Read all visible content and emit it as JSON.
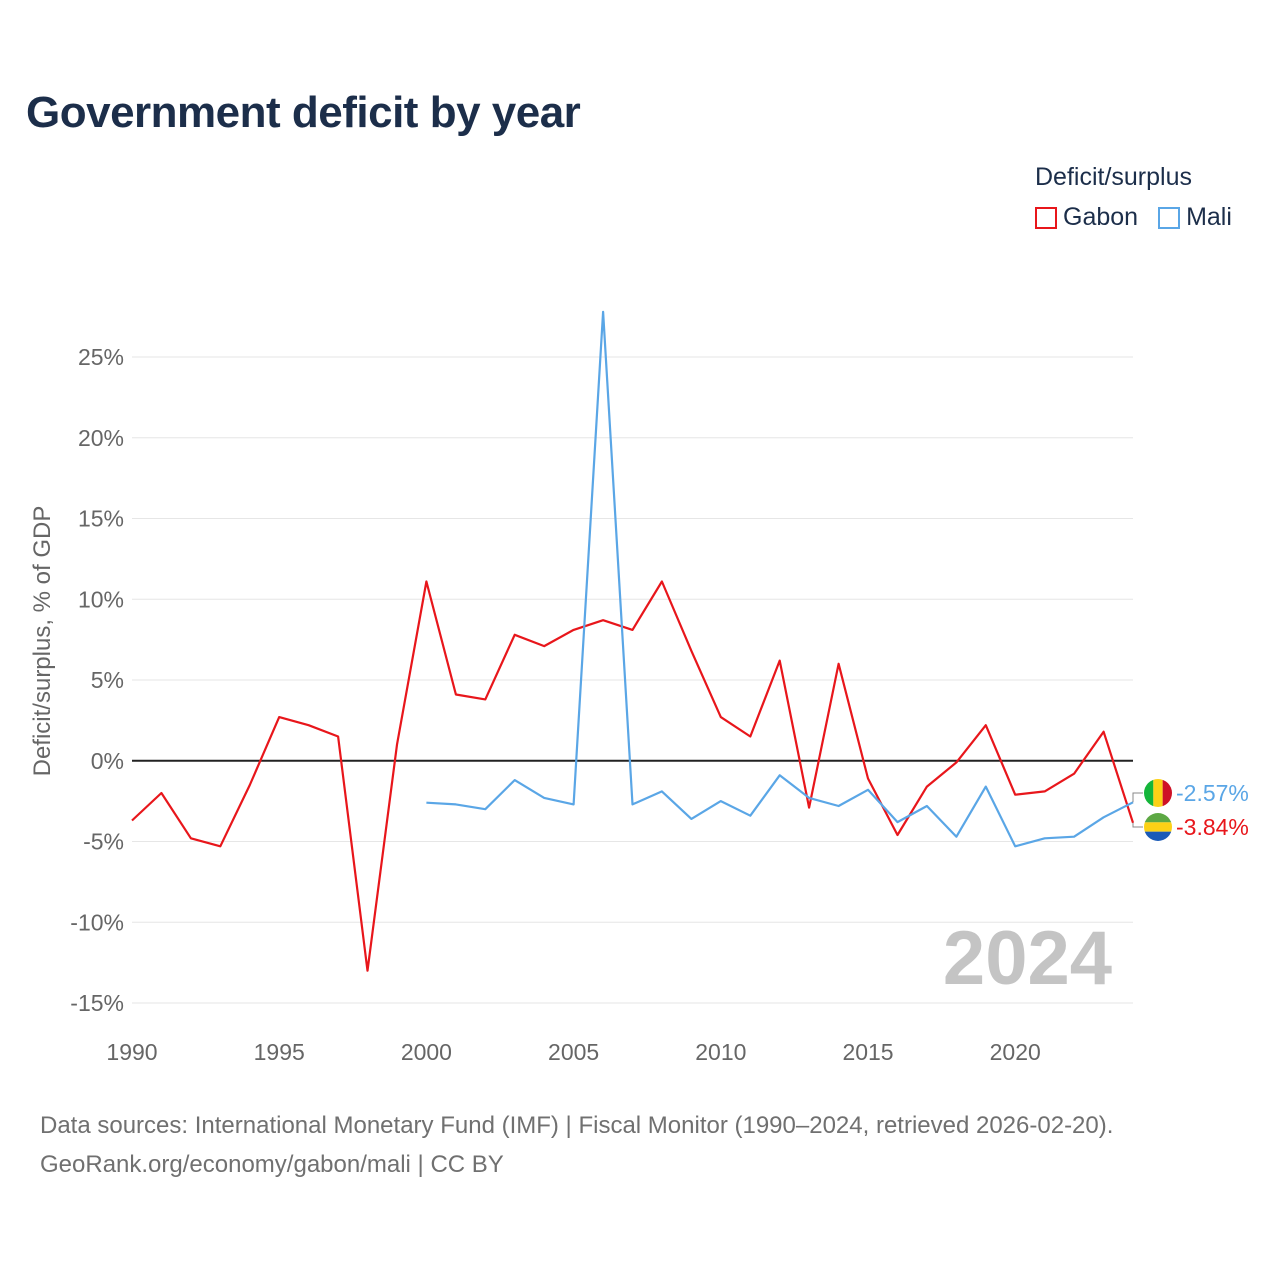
{
  "title": "Government deficit by year",
  "legend": {
    "title": "Deficit/surplus",
    "items": [
      {
        "label": "Gabon",
        "color": "#e8161b"
      },
      {
        "label": "Mali",
        "color": "#5aa6e6"
      }
    ]
  },
  "source": {
    "line1": "Data sources: International Monetary Fund (IMF) | Fiscal Monitor (1990–2024, retrieved 2026-02-20).",
    "line2": "GeoRank.org/economy/gabon/mali | CC BY"
  },
  "chart_data": {
    "type": "line",
    "title": "Government deficit by year",
    "xlabel": "",
    "ylabel": "Deficit/surplus, % of GDP",
    "xlim": [
      1990,
      2024
    ],
    "ylim": [
      -15,
      28
    ],
    "xticks": [
      1990,
      1995,
      2000,
      2005,
      2010,
      2015,
      2020
    ],
    "yticks": [
      -15,
      -10,
      -5,
      0,
      5,
      10,
      15,
      20,
      25
    ],
    "ytick_labels": [
      "-15%",
      "-10%",
      "-5%",
      "0%",
      "5%",
      "10%",
      "15%",
      "20%",
      "25%"
    ],
    "watermark_year": "2024",
    "series": [
      {
        "name": "Gabon",
        "color": "#e8161b",
        "end_label": "-3.84%",
        "x": [
          1990,
          1991,
          1992,
          1993,
          1994,
          1995,
          1996,
          1997,
          1998,
          1999,
          2000,
          2001,
          2002,
          2003,
          2004,
          2005,
          2006,
          2007,
          2008,
          2009,
          2010,
          2011,
          2012,
          2013,
          2014,
          2015,
          2016,
          2017,
          2018,
          2019,
          2020,
          2021,
          2022,
          2023,
          2024
        ],
        "values": [
          -3.7,
          -2.0,
          -4.8,
          -5.3,
          -1.5,
          2.7,
          2.2,
          1.5,
          -13.0,
          1.0,
          11.1,
          4.1,
          3.8,
          7.8,
          7.1,
          8.1,
          8.7,
          8.1,
          11.1,
          6.8,
          2.7,
          1.5,
          6.2,
          -2.9,
          6.0,
          -1.1,
          -4.6,
          -1.6,
          -0.1,
          2.2,
          -2.1,
          -1.9,
          -0.8,
          1.8,
          -3.84
        ]
      },
      {
        "name": "Mali",
        "color": "#5aa6e6",
        "end_label": "-2.57%",
        "x": [
          2000,
          2001,
          2002,
          2003,
          2004,
          2005,
          2006,
          2007,
          2008,
          2009,
          2010,
          2011,
          2012,
          2013,
          2014,
          2015,
          2016,
          2017,
          2018,
          2019,
          2020,
          2021,
          2022,
          2023,
          2024
        ],
        "values": [
          -2.6,
          -2.7,
          -3.0,
          -1.2,
          -2.3,
          -2.7,
          27.8,
          -2.7,
          -1.9,
          -3.6,
          -2.5,
          -3.4,
          -0.9,
          -2.3,
          -2.8,
          -1.8,
          -3.8,
          -2.8,
          -4.7,
          -1.6,
          -5.3,
          -4.8,
          -4.7,
          -3.5,
          -2.57
        ]
      }
    ]
  }
}
